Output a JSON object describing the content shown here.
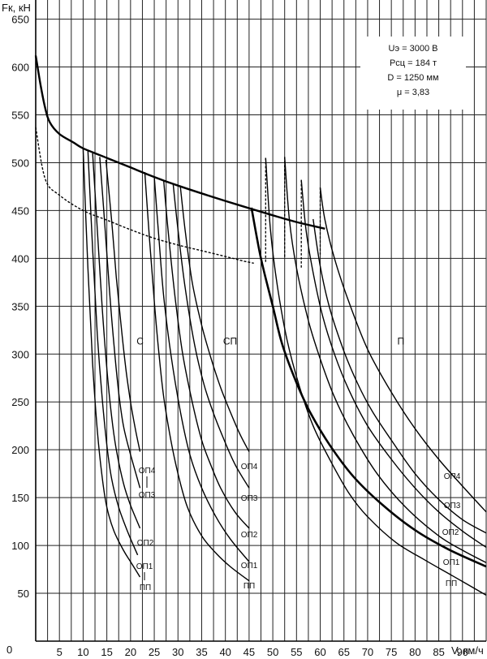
{
  "chart_data": {
    "type": "line",
    "ylabel": "Fк, кН",
    "xlabel": "V, км/ч",
    "xlim": [
      0,
      95
    ],
    "ylim": [
      0,
      670
    ],
    "x_grid_step": 2.5,
    "y_grid_step": 50,
    "grid": true,
    "x_ticks": [
      5,
      10,
      15,
      20,
      25,
      30,
      35,
      40,
      45,
      50,
      55,
      60,
      65,
      70,
      75,
      80,
      85,
      90
    ],
    "y_ticks": [
      50,
      100,
      150,
      200,
      250,
      300,
      350,
      400,
      450,
      500,
      550,
      600,
      650
    ],
    "origin_label": "0",
    "info": {
      "voltage": "Uэ = 3000 В",
      "weight": "Рсц = 184 т",
      "diameter": "D = 1250 мм",
      "ratio": "μ = 3,83"
    },
    "group_labels": [
      {
        "text": "С",
        "x": 22,
        "y": 310
      },
      {
        "text": "СП",
        "x": 41,
        "y": 310
      },
      {
        "text": "П",
        "x": 77,
        "y": 310
      }
    ],
    "adhesion_limit": {
      "points": [
        [
          0,
          612
        ],
        [
          1,
          582
        ],
        [
          2,
          557
        ],
        [
          3,
          542
        ],
        [
          5,
          530
        ],
        [
          8,
          521
        ],
        [
          10,
          515
        ],
        [
          15,
          505
        ],
        [
          20,
          495
        ],
        [
          25,
          485
        ],
        [
          30,
          476
        ],
        [
          40,
          460
        ],
        [
          50,
          445
        ],
        [
          55,
          438
        ],
        [
          61,
          431
        ]
      ],
      "width": 2.4
    },
    "dashed_limit": {
      "points": [
        [
          0,
          537
        ],
        [
          2,
          483
        ],
        [
          5,
          466
        ],
        [
          10,
          450
        ],
        [
          15,
          440
        ],
        [
          20,
          430
        ],
        [
          25,
          421
        ],
        [
          30,
          414
        ],
        [
          35,
          408
        ],
        [
          40,
          402
        ],
        [
          44,
          397
        ],
        [
          46,
          395
        ]
      ]
    },
    "series": [
      {
        "group": "С",
        "label": "ОП4",
        "points": [
          [
            14.8,
            503
          ],
          [
            16,
            440
          ],
          [
            17,
            380
          ],
          [
            18,
            330
          ],
          [
            19,
            285
          ],
          [
            20,
            250
          ],
          [
            21,
            222
          ],
          [
            22,
            198
          ]
        ]
      },
      {
        "group": "С",
        "label": "ОП3",
        "points": [
          [
            13.5,
            506
          ],
          [
            14.5,
            440
          ],
          [
            15.5,
            370
          ],
          [
            16.5,
            310
          ],
          [
            17.5,
            260
          ],
          [
            18.5,
            225
          ],
          [
            20,
            195
          ],
          [
            22,
            160
          ]
        ]
      },
      {
        "group": "С",
        "label": "ОП2",
        "points": [
          [
            12,
            510
          ],
          [
            13,
            430
          ],
          [
            14,
            350
          ],
          [
            15,
            285
          ],
          [
            16,
            235
          ],
          [
            17,
            200
          ],
          [
            18.5,
            165
          ],
          [
            20,
            142
          ],
          [
            22,
            118
          ]
        ]
      },
      {
        "group": "С",
        "label": "ОП1",
        "points": [
          [
            11,
            513
          ],
          [
            12,
            410
          ],
          [
            13,
            320
          ],
          [
            14,
            255
          ],
          [
            15,
            205
          ],
          [
            16,
            170
          ],
          [
            17.5,
            140
          ],
          [
            19.5,
            113
          ],
          [
            21.5,
            90
          ]
        ]
      },
      {
        "group": "С",
        "label": "ПП",
        "points": [
          [
            10,
            515
          ],
          [
            11,
            390
          ],
          [
            12,
            290
          ],
          [
            13,
            220
          ],
          [
            14,
            172
          ],
          [
            15,
            140
          ],
          [
            16.5,
            115
          ],
          [
            18.5,
            95
          ],
          [
            20,
            83
          ],
          [
            22,
            67
          ]
        ]
      },
      {
        "group": "СП",
        "label": "ОП4",
        "points": [
          [
            30.5,
            475
          ],
          [
            31.5,
            430
          ],
          [
            33,
            375
          ],
          [
            35,
            330
          ],
          [
            37,
            295
          ],
          [
            39,
            265
          ],
          [
            41,
            240
          ],
          [
            43,
            217
          ],
          [
            45,
            198
          ]
        ]
      },
      {
        "group": "СП",
        "label": "ОП3",
        "points": [
          [
            29,
            477
          ],
          [
            30,
            430
          ],
          [
            31.5,
            370
          ],
          [
            33.5,
            310
          ],
          [
            35.5,
            268
          ],
          [
            37.5,
            238
          ],
          [
            39.5,
            213
          ],
          [
            42,
            185
          ],
          [
            45,
            160
          ]
        ]
      },
      {
        "group": "СП",
        "label": "ОП2",
        "points": [
          [
            27,
            481
          ],
          [
            28,
            425
          ],
          [
            29.5,
            355
          ],
          [
            31,
            300
          ],
          [
            33,
            250
          ],
          [
            35,
            210
          ],
          [
            37,
            183
          ],
          [
            39,
            160
          ],
          [
            42,
            135
          ],
          [
            45,
            118
          ]
        ]
      },
      {
        "group": "СП",
        "label": "ОП1",
        "points": [
          [
            25,
            485
          ],
          [
            26,
            420
          ],
          [
            27,
            360
          ],
          [
            28.5,
            300
          ],
          [
            30.5,
            240
          ],
          [
            32.5,
            195
          ],
          [
            35,
            160
          ],
          [
            38,
            130
          ],
          [
            41,
            107
          ],
          [
            45,
            83
          ]
        ]
      },
      {
        "group": "СП",
        "label": "ПП",
        "points": [
          [
            23,
            490
          ],
          [
            24,
            420
          ],
          [
            25,
            355
          ],
          [
            26,
            300
          ],
          [
            27,
            255
          ],
          [
            28.5,
            210
          ],
          [
            30,
            175
          ],
          [
            32,
            140
          ],
          [
            35,
            110
          ],
          [
            38,
            92
          ],
          [
            41,
            78
          ],
          [
            45,
            63
          ]
        ]
      },
      {
        "group": "П",
        "label": "ОП4",
        "points": [
          [
            60,
            474
          ],
          [
            61,
            440
          ],
          [
            63,
            400
          ],
          [
            66,
            355
          ],
          [
            70,
            305
          ],
          [
            75,
            260
          ],
          [
            80,
            222
          ],
          [
            85,
            190
          ],
          [
            90,
            162
          ],
          [
            95,
            135
          ]
        ]
      },
      {
        "group": "П",
        "label": "ОП3",
        "points": [
          [
            58.5,
            441
          ],
          [
            60,
            392
          ],
          [
            62,
            348
          ],
          [
            65,
            303
          ],
          [
            68,
            268
          ],
          [
            71,
            240
          ],
          [
            75,
            210
          ],
          [
            80,
            175
          ],
          [
            85,
            148
          ],
          [
            90,
            127
          ],
          [
            95,
            113
          ]
        ]
      },
      {
        "group": "П",
        "label": "ОП2",
        "points": [
          [
            56,
            482
          ],
          [
            57,
            430
          ],
          [
            58.5,
            385
          ],
          [
            60.5,
            340
          ],
          [
            63,
            300
          ],
          [
            66,
            263
          ],
          [
            70,
            225
          ],
          [
            75,
            190
          ],
          [
            80,
            160
          ],
          [
            85,
            135
          ],
          [
            90,
            115
          ],
          [
            95,
            98
          ]
        ]
      },
      {
        "group": "П",
        "label": "ОП1",
        "points": [
          [
            52.5,
            506
          ],
          [
            53.5,
            440
          ],
          [
            55,
            390
          ],
          [
            57.5,
            335
          ],
          [
            60,
            295
          ],
          [
            63,
            255
          ],
          [
            67,
            215
          ],
          [
            72,
            175
          ],
          [
            78,
            140
          ],
          [
            85,
            110
          ],
          [
            90,
            95
          ],
          [
            95,
            82
          ]
        ]
      },
      {
        "group": "П",
        "label": "ПП",
        "points": [
          [
            48.5,
            505
          ],
          [
            49.5,
            430
          ],
          [
            51,
            370
          ],
          [
            53,
            315
          ],
          [
            55.5,
            268
          ],
          [
            58.5,
            225
          ],
          [
            62,
            190
          ],
          [
            66,
            155
          ],
          [
            70,
            130
          ],
          [
            76,
            103
          ],
          [
            82,
            85
          ],
          [
            88,
            68
          ],
          [
            95,
            48
          ]
        ]
      },
      {
        "group": "П",
        "label": "",
        "points": [
          [
            45.5,
            453
          ],
          [
            47.5,
            400
          ],
          [
            50,
            350
          ],
          [
            52,
            310
          ],
          [
            55,
            270
          ],
          [
            58,
            238
          ],
          [
            62,
            205
          ],
          [
            67,
            172
          ],
          [
            73,
            143
          ],
          [
            80,
            116
          ],
          [
            87,
            96
          ],
          [
            95,
            78
          ]
        ]
      }
    ],
    "transitions": [
      [
        [
          48.5,
          505
        ],
        [
          48.5,
          395
        ]
      ],
      [
        [
          52.5,
          506
        ],
        [
          52.5,
          400
        ]
      ],
      [
        [
          56,
          482
        ],
        [
          56,
          390
        ]
      ],
      [
        [
          60,
          474
        ],
        [
          60,
          404
        ]
      ]
    ],
    "curve_end_labels": {
      "С": [
        "ОП4",
        "ОП3",
        "ОП2",
        "ОП1",
        "ПП"
      ],
      "СП": [
        "ОП4",
        "ОП3",
        "ОП2",
        "ОП1",
        "ПП"
      ],
      "П": [
        "ОП4",
        "ОП3",
        "ОП2",
        "ОП1",
        "ПП"
      ]
    }
  }
}
